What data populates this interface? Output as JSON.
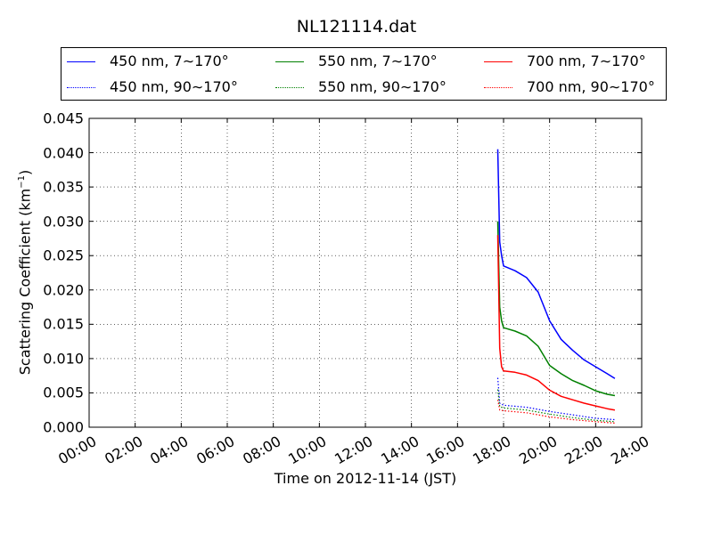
{
  "chart_data": {
    "type": "line",
    "title": "NL121114.dat",
    "xlabel": "Time on 2012-11-14 (JST)",
    "ylabel_main": "Scattering Coefficient (km",
    "ylabel_sup": "−1",
    "ylabel_end": ")",
    "xlim": [
      "00:00",
      "24:00"
    ],
    "ylim": [
      0,
      0.045
    ],
    "grid": true,
    "legend_position": "top, above plot, 3 columns",
    "xticks": [
      "00:00",
      "02:00",
      "04:00",
      "06:00",
      "08:00",
      "10:00",
      "12:00",
      "14:00",
      "16:00",
      "18:00",
      "20:00",
      "22:00",
      "24:00"
    ],
    "yticks": [
      "0.000",
      "0.005",
      "0.010",
      "0.015",
      "0.020",
      "0.025",
      "0.030",
      "0.035",
      "0.040",
      "0.045"
    ],
    "series": [
      {
        "name": "450 nm, 7∼170°",
        "color": "#0000ff",
        "style": "solid",
        "x": [
          "17:45",
          "17:50",
          "17:55",
          "18:00",
          "18:30",
          "19:00",
          "19:30",
          "20:00",
          "20:30",
          "21:00",
          "21:30",
          "22:00",
          "22:30",
          "22:50"
        ],
        "y": [
          0.0405,
          0.027,
          0.025,
          0.0235,
          0.0228,
          0.0218,
          0.0197,
          0.0155,
          0.0128,
          0.0112,
          0.0098,
          0.0088,
          0.0078,
          0.0071
        ]
      },
      {
        "name": "450 nm, 90∼170°",
        "color": "#0000ff",
        "style": "dotted",
        "x": [
          "17:45",
          "17:50",
          "18:00",
          "19:00",
          "20:00",
          "21:00",
          "22:00",
          "22:50"
        ],
        "y": [
          0.0072,
          0.0035,
          0.0032,
          0.0029,
          0.0023,
          0.0018,
          0.0013,
          0.0011
        ]
      },
      {
        "name": "550 nm, 7∼170°",
        "color": "#008000",
        "style": "solid",
        "x": [
          "17:45",
          "17:50",
          "17:55",
          "18:00",
          "18:30",
          "19:00",
          "19:30",
          "20:00",
          "20:30",
          "21:00",
          "21:30",
          "22:00",
          "22:30",
          "22:50"
        ],
        "y": [
          0.03,
          0.0175,
          0.0155,
          0.0145,
          0.014,
          0.0133,
          0.0118,
          0.009,
          0.0078,
          0.0068,
          0.0061,
          0.0053,
          0.0048,
          0.0046
        ]
      },
      {
        "name": "550 nm, 90∼170°",
        "color": "#008000",
        "style": "dotted",
        "x": [
          "17:45",
          "17:50",
          "18:00",
          "19:00",
          "20:00",
          "21:00",
          "22:00",
          "22:50"
        ],
        "y": [
          0.0055,
          0.003,
          0.0028,
          0.0025,
          0.0019,
          0.0014,
          0.001,
          0.0008
        ]
      },
      {
        "name": "700 nm, 7∼170°",
        "color": "#ff0000",
        "style": "solid",
        "x": [
          "17:45",
          "17:50",
          "17:55",
          "18:00",
          "18:30",
          "19:00",
          "19:30",
          "20:00",
          "20:30",
          "21:00",
          "21:30",
          "22:00",
          "22:30",
          "22:50"
        ],
        "y": [
          0.028,
          0.0115,
          0.0088,
          0.0082,
          0.008,
          0.0076,
          0.0068,
          0.0054,
          0.0045,
          0.004,
          0.0035,
          0.0031,
          0.0027,
          0.0025
        ]
      },
      {
        "name": "700 nm, 90∼170°",
        "color": "#ff0000",
        "style": "dotted",
        "x": [
          "17:45",
          "17:50",
          "18:00",
          "19:00",
          "20:00",
          "21:00",
          "22:00",
          "22:50"
        ],
        "y": [
          0.004,
          0.0025,
          0.0024,
          0.0021,
          0.0015,
          0.0011,
          0.0008,
          0.0006
        ]
      }
    ]
  }
}
